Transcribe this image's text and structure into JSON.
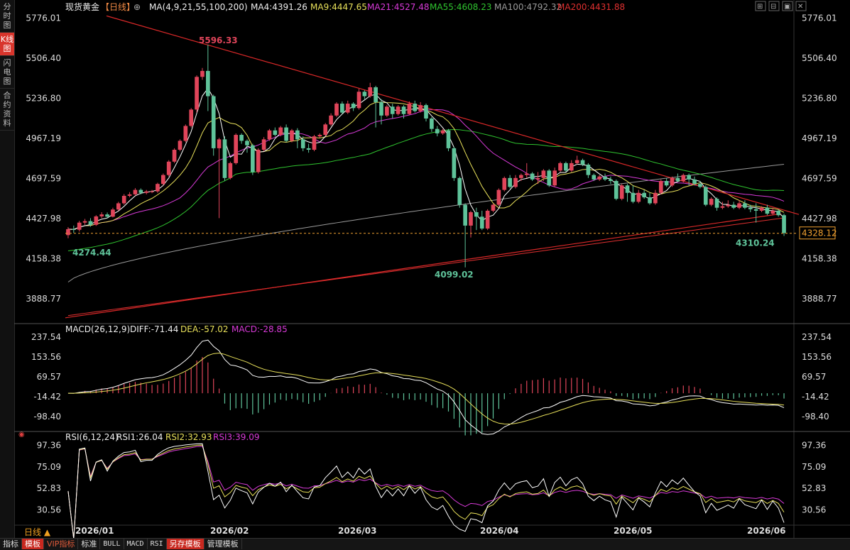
{
  "nav": {
    "items": [
      "分时图",
      "K线图",
      "闪电图",
      "合约资料"
    ],
    "active": 1
  },
  "header": {
    "symbol": "现货黄金",
    "period": "【日线】",
    "ma_text": "MA(4,9,21,55,100,200)",
    "ma4": "MA4:4391.26",
    "ma9": "MA9:4447.65",
    "ma21": "MA21:4527.48",
    "ma55": "MA55:4608.23",
    "ma100": "MA100:4792.32",
    "ma200": "MA200:4431.88"
  },
  "window_buttons": [
    "⊞",
    "⊟",
    "▣",
    "✕"
  ],
  "macd_header": {
    "name": "MACD(26,12,9)",
    "diff": "DIFF:-71.44",
    "dea": "DEA:-57.02",
    "macd": "MACD:-28.85"
  },
  "rsi_header": {
    "name": "RSI(6,12,24)",
    "rsi1": "RSI1:26.04",
    "rsi2": "RSI2:32.93",
    "rsi3": "RSI3:39.09"
  },
  "toolbar": {
    "items": [
      "指标",
      "模板",
      "VIP指标",
      "标准",
      "BULL",
      "MACD",
      "RSI",
      "另存模板",
      "管理模板"
    ],
    "freq": "日线 ▲"
  },
  "colors": {
    "up": "#e0455a",
    "down": "#5fc39a",
    "ma4": "#ffffff",
    "ma9": "#e8e05a",
    "ma21": "#d83ad8",
    "ma55": "#2fc42f",
    "ma100": "#9a9a9a",
    "ma200": "#e03030",
    "trend": "#d92828",
    "last": "#f0a030",
    "diff": "#ffffff",
    "dea": "#e8e05a"
  },
  "chart_data": {
    "type": "candlestick",
    "price_axis_ticks": [
      5776.01,
      5506.4,
      5236.8,
      4967.19,
      4697.59,
      4427.98,
      4158.38,
      3888.77
    ],
    "price_range": [
      3740,
      5830
    ],
    "months": [
      "2026/01",
      "2026/02",
      "2026/03",
      "2026/04",
      "2026/05",
      "2026/06"
    ],
    "annotations": {
      "high": "5596.33",
      "low1": "4274.44",
      "low2": "4099.02",
      "recent_low": "4310.24",
      "last_price": "4328.12"
    },
    "macd_axis_ticks": [
      237.54,
      153.56,
      69.57,
      -14.42,
      -98.4
    ],
    "macd_range": [
      -150,
      265
    ],
    "rsi_axis_ticks": [
      97.36,
      75.09,
      52.83,
      30.56
    ],
    "rsi_range": [
      16,
      106
    ],
    "candles": [
      [
        4316,
        4356,
        4295,
        4370
      ],
      [
        4356,
        4352,
        4330,
        4380
      ],
      [
        4352,
        4400,
        4340,
        4412
      ],
      [
        4400,
        4410,
        4385,
        4425
      ],
      [
        4410,
        4385,
        4372,
        4430
      ],
      [
        4385,
        4442,
        4378,
        4450
      ],
      [
        4442,
        4455,
        4430,
        4470
      ],
      [
        4455,
        4440,
        4428,
        4468
      ],
      [
        4440,
        4488,
        4435,
        4500
      ],
      [
        4488,
        4530,
        4480,
        4540
      ],
      [
        4530,
        4580,
        4520,
        4592
      ],
      [
        4580,
        4590,
        4570,
        4605
      ],
      [
        4590,
        4620,
        4580,
        4632
      ],
      [
        4620,
        4600,
        4590,
        4630
      ],
      [
        4600,
        4610,
        4590,
        4620
      ],
      [
        4610,
        4610,
        4598,
        4620
      ],
      [
        4610,
        4660,
        4600,
        4668
      ],
      [
        4660,
        4720,
        4650,
        4730
      ],
      [
        4720,
        4810,
        4710,
        4820
      ],
      [
        4810,
        4890,
        4800,
        4900
      ],
      [
        4890,
        4950,
        4880,
        4960
      ],
      [
        4950,
        5050,
        4940,
        5060
      ],
      [
        5050,
        5160,
        5040,
        5170
      ],
      [
        5160,
        5380,
        5140,
        5390
      ],
      [
        5380,
        5420,
        5360,
        5440
      ],
      [
        5420,
        5250,
        5150,
        5596.33
      ],
      [
        5250,
        4900,
        4850,
        5260
      ],
      [
        4900,
        4960,
        4430,
        4970
      ],
      [
        4960,
        4700,
        4680,
        4980
      ],
      [
        4700,
        4800,
        4690,
        4810
      ],
      [
        4800,
        4990,
        4790,
        5000
      ],
      [
        4990,
        4950,
        4930,
        5000
      ],
      [
        4950,
        4920,
        4870,
        4960
      ],
      [
        4920,
        4740,
        4720,
        4930
      ],
      [
        4740,
        4890,
        4730,
        4900
      ],
      [
        4890,
        4960,
        4880,
        4975
      ],
      [
        4960,
        5020,
        4950,
        5030
      ],
      [
        5020,
        4990,
        4980,
        5040
      ],
      [
        4990,
        5040,
        4980,
        5050
      ],
      [
        5040,
        4950,
        4940,
        5060
      ],
      [
        4950,
        5020,
        4940,
        5030
      ],
      [
        5020,
        4960,
        4900,
        5035
      ],
      [
        4960,
        4900,
        4880,
        4980
      ],
      [
        4900,
        4890,
        4870,
        4930
      ],
      [
        4890,
        4980,
        4880,
        4990
      ],
      [
        4980,
        4990,
        4970,
        5000
      ],
      [
        4990,
        5060,
        4980,
        5070
      ],
      [
        5060,
        5120,
        5050,
        5135
      ],
      [
        5120,
        5200,
        5110,
        5210
      ],
      [
        5200,
        5140,
        5130,
        5215
      ],
      [
        5140,
        5200,
        5130,
        5220
      ],
      [
        5200,
        5170,
        5150,
        5210
      ],
      [
        5170,
        5280,
        5160,
        5300
      ],
      [
        5280,
        5250,
        5230,
        5290
      ],
      [
        5250,
        5310,
        5240,
        5340
      ],
      [
        5310,
        5210,
        5040,
        5320
      ],
      [
        5210,
        5120,
        5060,
        5230
      ],
      [
        5120,
        5180,
        5110,
        5190
      ],
      [
        5180,
        5130,
        5100,
        5200
      ],
      [
        5130,
        5180,
        5120,
        5190
      ],
      [
        5180,
        5130,
        5100,
        5190
      ],
      [
        5130,
        5200,
        5125,
        5215
      ],
      [
        5200,
        5150,
        5140,
        5220
      ],
      [
        5150,
        5190,
        5140,
        5210
      ],
      [
        5190,
        5100,
        5080,
        5200
      ],
      [
        5100,
        5030,
        5010,
        5110
      ],
      [
        5030,
        5000,
        4980,
        5050
      ],
      [
        5000,
        5020,
        4990,
        5030
      ],
      [
        5020,
        4900,
        4880,
        5030
      ],
      [
        4900,
        4700,
        4680,
        4910
      ],
      [
        4700,
        4520,
        4500,
        4710
      ],
      [
        4520,
        4380,
        4099.02,
        4530
      ],
      [
        4380,
        4470,
        4300,
        4480
      ],
      [
        4470,
        4440,
        4350,
        4500
      ],
      [
        4440,
        4360,
        4350,
        4480
      ],
      [
        4360,
        4480,
        4350,
        4490
      ],
      [
        4480,
        4520,
        4470,
        4530
      ],
      [
        4520,
        4620,
        4510,
        4630
      ],
      [
        4620,
        4700,
        4610,
        4710
      ],
      [
        4700,
        4640,
        4630,
        4720
      ],
      [
        4640,
        4700,
        4630,
        4720
      ],
      [
        4700,
        4720,
        4680,
        4730
      ],
      [
        4720,
        4730,
        4700,
        4800
      ],
      [
        4730,
        4690,
        4680,
        4740
      ],
      [
        4690,
        4700,
        4660,
        4740
      ],
      [
        4700,
        4750,
        4680,
        4760
      ],
      [
        4750,
        4650,
        4640,
        4760
      ],
      [
        4650,
        4750,
        4640,
        4770
      ],
      [
        4750,
        4800,
        4740,
        4810
      ],
      [
        4800,
        4750,
        4740,
        4810
      ],
      [
        4750,
        4800,
        4740,
        4820
      ],
      [
        4800,
        4820,
        4790,
        4850
      ],
      [
        4820,
        4790,
        4780,
        4830
      ],
      [
        4790,
        4720,
        4700,
        4800
      ],
      [
        4720,
        4690,
        4680,
        4730
      ],
      [
        4690,
        4710,
        4680,
        4720
      ],
      [
        4710,
        4690,
        4680,
        4730
      ],
      [
        4690,
        4680,
        4660,
        4710
      ],
      [
        4680,
        4560,
        4550,
        4690
      ],
      [
        4560,
        4650,
        4550,
        4660
      ],
      [
        4650,
        4600,
        4540,
        4660
      ],
      [
        4600,
        4540,
        4530,
        4650
      ],
      [
        4540,
        4600,
        4530,
        4620
      ],
      [
        4600,
        4570,
        4560,
        4620
      ],
      [
        4570,
        4530,
        4520,
        4600
      ],
      [
        4530,
        4600,
        4520,
        4620
      ],
      [
        4600,
        4680,
        4590,
        4690
      ],
      [
        4680,
        4650,
        4640,
        4700
      ],
      [
        4650,
        4700,
        4640,
        4710
      ],
      [
        4700,
        4680,
        4670,
        4730
      ],
      [
        4680,
        4720,
        4670,
        4730
      ],
      [
        4720,
        4690,
        4650,
        4730
      ],
      [
        4690,
        4660,
        4650,
        4710
      ],
      [
        4660,
        4640,
        4630,
        4680
      ],
      [
        4640,
        4520,
        4510,
        4650
      ],
      [
        4520,
        4560,
        4510,
        4570
      ],
      [
        4560,
        4500,
        4480,
        4570
      ],
      [
        4500,
        4510,
        4490,
        4540
      ],
      [
        4510,
        4520,
        4500,
        4550
      ],
      [
        4520,
        4500,
        4490,
        4540
      ],
      [
        4500,
        4530,
        4490,
        4550
      ],
      [
        4530,
        4500,
        4490,
        4550
      ],
      [
        4500,
        4490,
        4470,
        4520
      ],
      [
        4490,
        4480,
        4400,
        4530
      ],
      [
        4480,
        4500,
        4470,
        4510
      ],
      [
        4500,
        4460,
        4450,
        4520
      ],
      [
        4460,
        4480,
        4450,
        4500
      ],
      [
        4480,
        4450,
        4440,
        4490
      ],
      [
        4450,
        4330,
        4310.24,
        4460
      ]
    ]
  }
}
